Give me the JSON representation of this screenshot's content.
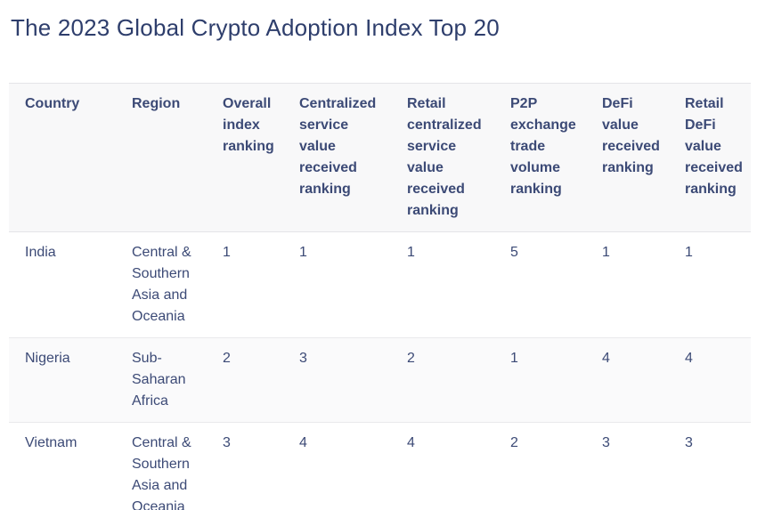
{
  "page": {
    "title": "The 2023 Global Crypto Adoption Index Top 20"
  },
  "colors": {
    "title_text": "#2e3e6c",
    "table_text": "#3c4a76",
    "header_background": "#f8f8f9",
    "stripe_row_background": "#fafafb",
    "border": "#e4e4e8",
    "page_background": "#ffffff"
  },
  "chart_data": {
    "type": "table",
    "title": "The 2023 Global Crypto Adoption Index Top 20",
    "columns": [
      "Country",
      "Region",
      "Overall index ranking",
      "Centralized service value received ranking",
      "Retail centralized service value received ranking",
      "P2P exchange trade volume ranking",
      "DeFi value received ranking",
      "Retail DeFi value received ranking"
    ],
    "rows": [
      {
        "country": "India",
        "region": "Central & Southern Asia and Oceania",
        "overall_index_ranking": "1",
        "centralized_service_value_received_ranking": "1",
        "retail_centralized_service_value_received_ranking": "1",
        "p2p_exchange_trade_volume_ranking": "5",
        "defi_value_received_ranking": "1",
        "retail_defi_value_received_ranking": "1"
      },
      {
        "country": "Nigeria",
        "region": "Sub-Saharan Africa",
        "overall_index_ranking": "2",
        "centralized_service_value_received_ranking": "3",
        "retail_centralized_service_value_received_ranking": "2",
        "p2p_exchange_trade_volume_ranking": "1",
        "defi_value_received_ranking": "4",
        "retail_defi_value_received_ranking": "4"
      },
      {
        "country": "Vietnam",
        "region": "Central & Southern Asia and Oceania",
        "overall_index_ranking": "3",
        "centralized_service_value_received_ranking": "4",
        "retail_centralized_service_value_received_ranking": "4",
        "p2p_exchange_trade_volume_ranking": "2",
        "defi_value_received_ranking": "3",
        "retail_defi_value_received_ranking": "3"
      }
    ]
  }
}
